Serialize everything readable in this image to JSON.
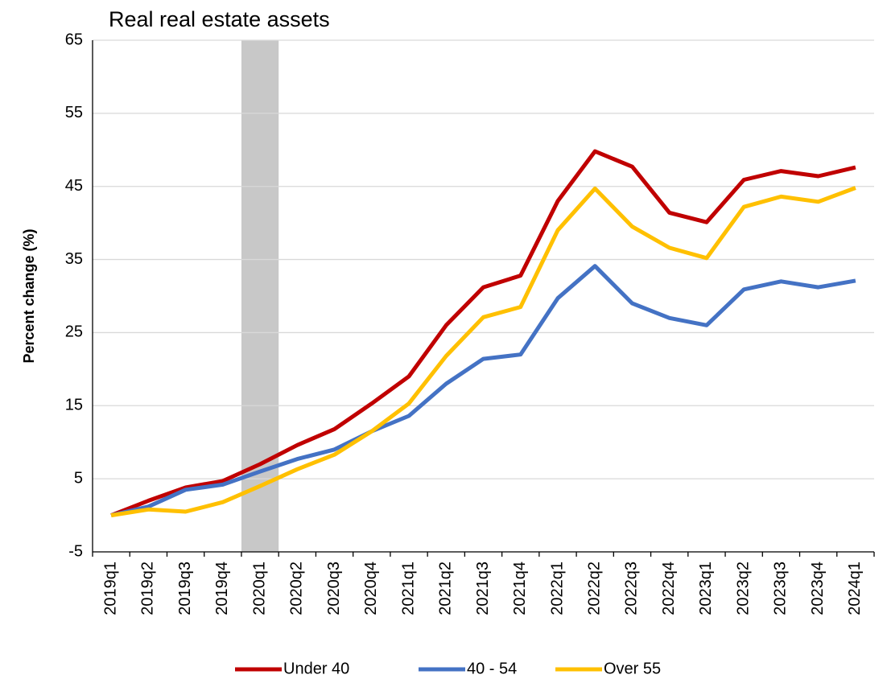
{
  "chart_data": {
    "type": "line",
    "title": "Real real estate assets",
    "y_label": "Percent change (%)",
    "categories": [
      "2019q1",
      "2019q2",
      "2019q3",
      "2019q4",
      "2020q1",
      "2020q2",
      "2020q3",
      "2020q4",
      "2021q1",
      "2021q2",
      "2021q3",
      "2021q4",
      "2022q1",
      "2022q2",
      "2022q3",
      "2022q4",
      "2023q1",
      "2023q2",
      "2023q3",
      "2023q4",
      "2024q1"
    ],
    "series": [
      {
        "name": "Under 40",
        "color": "#c00000",
        "values": [
          0,
          2,
          3.8,
          4.7,
          7,
          9.6,
          11.8,
          15.3,
          19,
          26,
          31.2,
          32.8,
          43,
          49.8,
          47.7,
          41.4,
          40.1,
          45.9,
          47.1,
          46.4,
          47.6
        ]
      },
      {
        "name": "40 - 54",
        "color": "#4472c4",
        "values": [
          0,
          1.2,
          3.5,
          4.2,
          6,
          7.7,
          9,
          11.5,
          13.6,
          18,
          21.4,
          22,
          29.7,
          34.1,
          29,
          27,
          26,
          30.9,
          32,
          31.2,
          32.1
        ]
      },
      {
        "name": "Over 55",
        "color": "#ffc000",
        "values": [
          0,
          0.8,
          0.5,
          1.8,
          4,
          6.3,
          8.3,
          11.5,
          15.3,
          21.8,
          27.1,
          28.5,
          39,
          44.7,
          39.5,
          36.6,
          35.2,
          42.2,
          43.6,
          42.9,
          44.8
        ]
      }
    ],
    "ylim": [
      -5,
      65
    ],
    "yticks": [
      -5,
      5,
      15,
      25,
      35,
      45,
      55,
      65
    ],
    "grid": true,
    "shaded": [
      "2020q1"
    ],
    "shade_color": "#c8c8c8",
    "legend": "bottom"
  }
}
